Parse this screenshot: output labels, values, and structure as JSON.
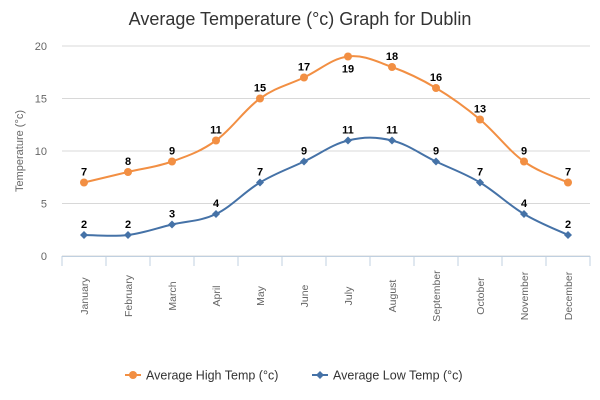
{
  "chart_data": {
    "type": "line",
    "title": "Average Temperature (°c) Graph for Dublin",
    "xlabel": "",
    "ylabel": "Temperature (°c)",
    "ylim": [
      0,
      20
    ],
    "yticks": [
      0,
      5,
      10,
      15,
      20
    ],
    "grid": true,
    "legend": "bottom",
    "categories": [
      "January",
      "February",
      "March",
      "April",
      "May",
      "June",
      "July",
      "August",
      "September",
      "October",
      "November",
      "December"
    ],
    "series": [
      {
        "name": "Average High Temp (°c)",
        "color": "#f28f43",
        "marker": "circle",
        "values": [
          7,
          8,
          9,
          11,
          15,
          17,
          19,
          18,
          16,
          13,
          9,
          7
        ]
      },
      {
        "name": "Average Low Temp (°c)",
        "color": "#4572a7",
        "marker": "diamond",
        "values": [
          2,
          2,
          3,
          4,
          7,
          9,
          11,
          11,
          9,
          7,
          4,
          2
        ]
      }
    ]
  }
}
